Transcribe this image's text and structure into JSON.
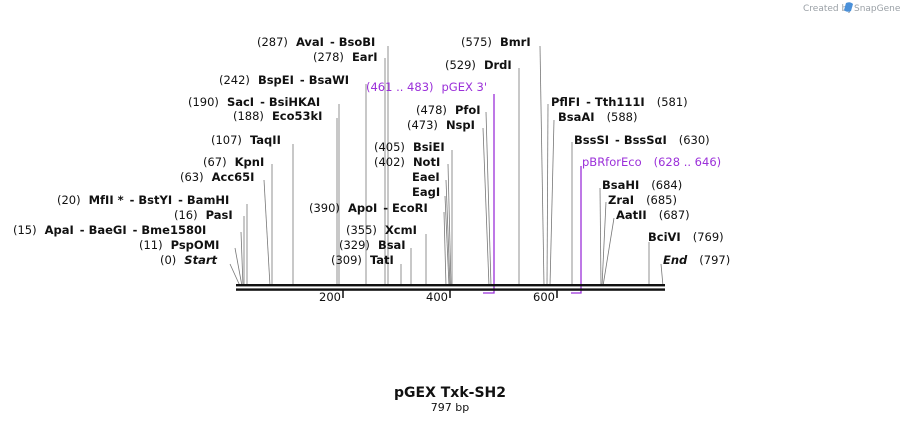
{
  "credit": {
    "created_by": "Created by",
    "brand": "SnapGene"
  },
  "plasmid": {
    "name": "pGEX Txk-SH2",
    "length_label": "797 bp"
  },
  "scale_ticks": [
    "200",
    "400",
    "600"
  ],
  "labels": [
    {
      "pos": "(287)",
      "names": [
        "AvaI",
        "BsoBI"
      ]
    },
    {
      "pos": "(278)",
      "names": [
        "EarI"
      ]
    },
    {
      "pos": "(242)",
      "names": [
        "BspEI",
        "BsaWI"
      ]
    },
    {
      "pos": "(190)",
      "names": [
        "SacI",
        "BsiHKAI"
      ]
    },
    {
      "pos": "(188)",
      "names": [
        "Eco53kI"
      ]
    },
    {
      "pos": "(107)",
      "names": [
        "TaqII"
      ]
    },
    {
      "pos": "(67)",
      "names": [
        "KpnI"
      ]
    },
    {
      "pos": "(63)",
      "names": [
        "Acc65I"
      ]
    },
    {
      "pos": "(20)",
      "names": [
        "MfII *",
        "BstYI",
        "BamHI"
      ]
    },
    {
      "pos": "(16)",
      "names": [
        "PasI"
      ]
    },
    {
      "pos": "(15)",
      "names": [
        "ApaI",
        "BaeGI",
        "Bme1580I"
      ]
    },
    {
      "pos": "(11)",
      "names": [
        "PspOMI"
      ]
    },
    {
      "pos": "(0)",
      "names": [
        "Start"
      ]
    },
    {
      "pos": "(575)",
      "names": [
        "BmrI"
      ]
    },
    {
      "pos": "(529)",
      "names": [
        "DrdI"
      ]
    },
    {
      "pos": "(478)",
      "names": [
        "PfoI"
      ]
    },
    {
      "pos": "(473)",
      "names": [
        "NspI"
      ]
    },
    {
      "pos": "(405)",
      "names": [
        "BsiEI"
      ]
    },
    {
      "pos": "(402)",
      "names": [
        "NotI"
      ]
    },
    {
      "pos": "",
      "names": [
        "EaeI"
      ]
    },
    {
      "pos": "",
      "names": [
        "EagI"
      ]
    },
    {
      "pos": "(390)",
      "names": [
        "ApoI",
        "EcoRI"
      ]
    },
    {
      "pos": "(355)",
      "names": [
        "XcmI"
      ]
    },
    {
      "pos": "(329)",
      "names": [
        "BsaI"
      ]
    },
    {
      "pos": "(309)",
      "names": [
        "TatI"
      ]
    },
    {
      "pos": "(581)",
      "names": [
        "PflFI",
        "Tth111I"
      ]
    },
    {
      "pos": "(588)",
      "names": [
        "BsaAI"
      ]
    },
    {
      "pos": "(630)",
      "names": [
        "BssSI",
        "BssSαI"
      ]
    },
    {
      "pos": "(684)",
      "names": [
        "BsaHI"
      ]
    },
    {
      "pos": "(685)",
      "names": [
        "ZraI"
      ]
    },
    {
      "pos": "(687)",
      "names": [
        "AatII"
      ]
    },
    {
      "pos": "(769)",
      "names": [
        "BciVI"
      ]
    },
    {
      "pos": "(797)",
      "names": [
        "End"
      ]
    }
  ],
  "features": [
    {
      "name": "pGEX 3'",
      "range": "(461 .. 483)"
    },
    {
      "name": "pBRforEco",
      "range": "(628 .. 646)"
    }
  ],
  "colors": {
    "feature": "#9b30d9",
    "backbone": "#111111",
    "credit": "#9aa0a6",
    "logo": "#4a90d9"
  }
}
